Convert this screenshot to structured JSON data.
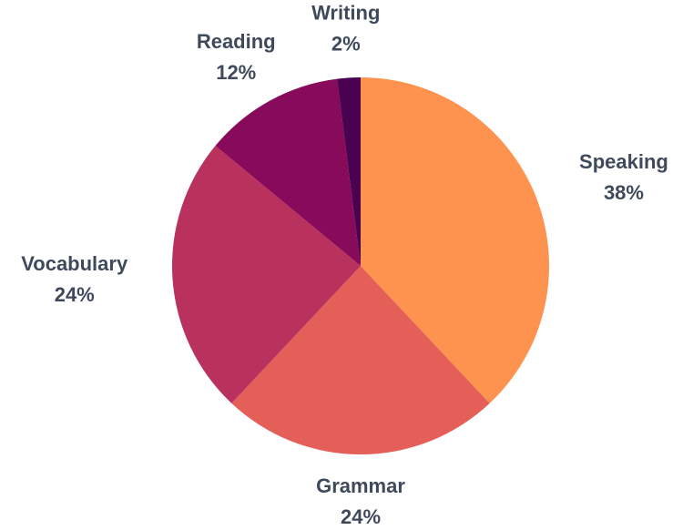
{
  "chart_data": {
    "type": "pie",
    "categories": [
      "Speaking",
      "Grammar",
      "Vocabulary",
      "Reading",
      "Writing"
    ],
    "values": [
      38,
      24,
      24,
      12,
      2
    ],
    "value_labels": [
      "38%",
      "24%",
      "24%",
      "12%",
      "2%"
    ],
    "colors": [
      "#fe934f",
      "#e35f58",
      "#b8325d",
      "#870b5a",
      "#4a0150"
    ]
  }
}
